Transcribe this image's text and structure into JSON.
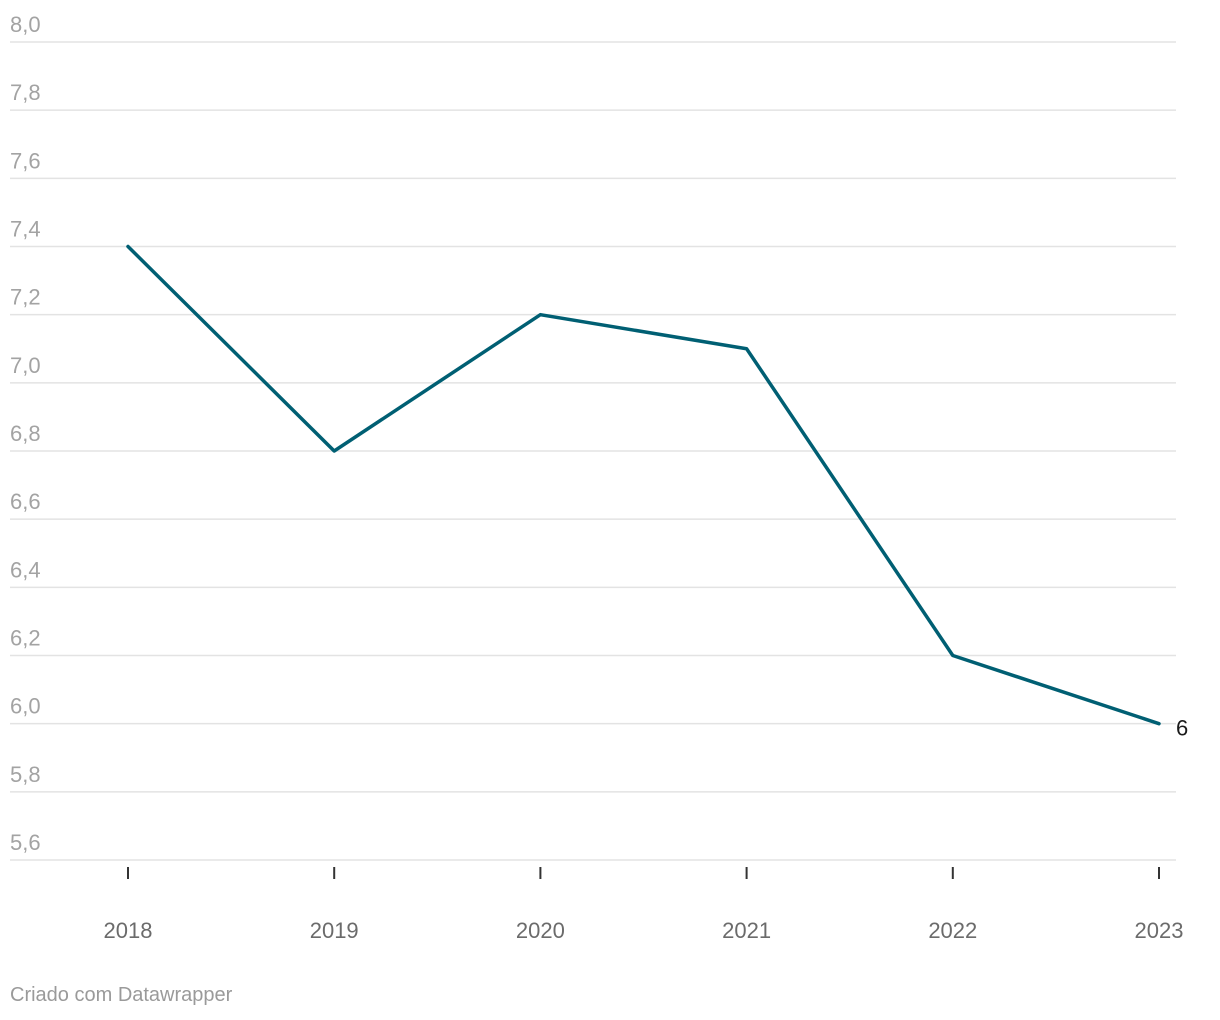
{
  "chart_data": {
    "type": "line",
    "title": "",
    "xlabel": "",
    "ylabel": "",
    "categories": [
      "2018",
      "2019",
      "2020",
      "2021",
      "2022",
      "2023"
    ],
    "series": [
      {
        "values": [
          7.4,
          6.8,
          7.2,
          7.1,
          6.2,
          6.0
        ],
        "color": "#005f73"
      }
    ],
    "ylim": [
      5.6,
      8.0
    ],
    "y_ticks": [
      5.6,
      5.8,
      6.0,
      6.2,
      6.4,
      6.6,
      6.8,
      7.0,
      7.2,
      7.4,
      7.6,
      7.8,
      8.0
    ],
    "y_tick_labels": [
      "5,6",
      "5,8",
      "6,0",
      "6,2",
      "6,4",
      "6,6",
      "6,8",
      "7,0",
      "7,2",
      "7,4",
      "7,6",
      "7,8",
      "8,0"
    ],
    "end_label": "6",
    "grid": true,
    "legend": "none"
  },
  "footer": {
    "credit": "Criado com Datawrapper"
  }
}
